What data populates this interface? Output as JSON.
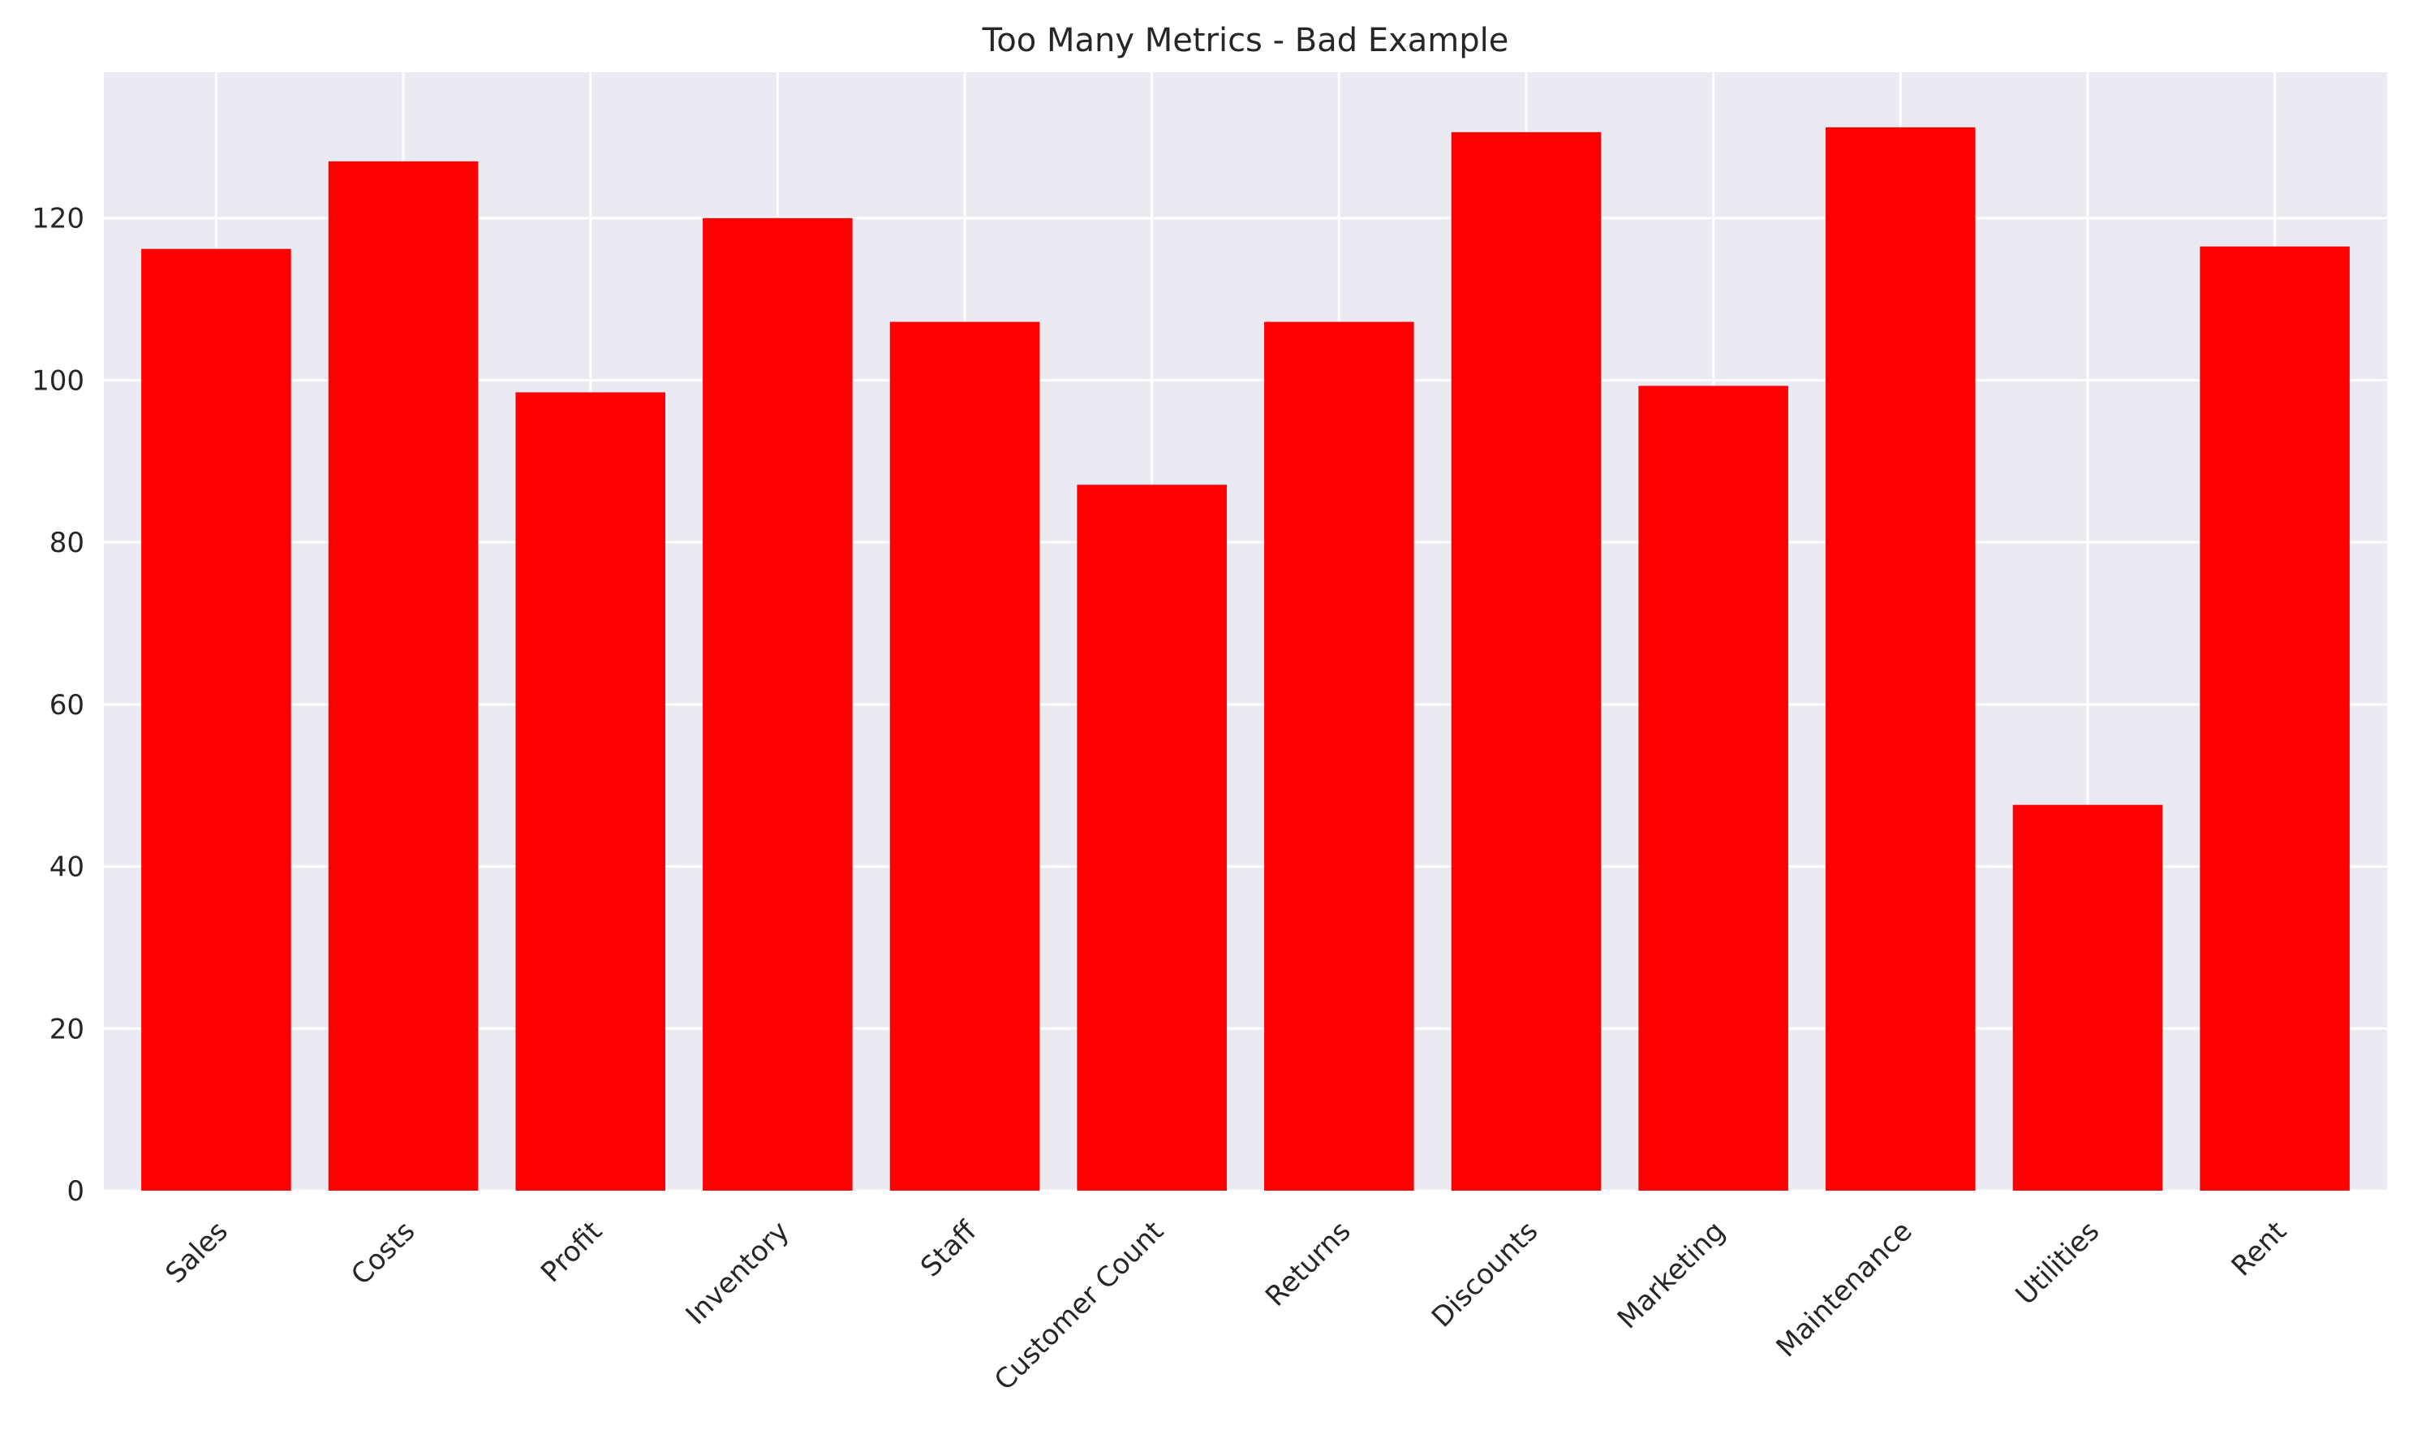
{
  "chart_data": {
    "type": "bar",
    "title": "Too Many Metrics - Bad Example",
    "xlabel": "",
    "ylabel": "",
    "categories": [
      "Sales",
      "Costs",
      "Profit",
      "Inventory",
      "Staff",
      "Customer Count",
      "Returns",
      "Discounts",
      "Marketing",
      "Maintenance",
      "Utilities",
      "Rent"
    ],
    "values": [
      116.2,
      127.0,
      98.5,
      120.0,
      107.2,
      87.1,
      107.2,
      130.6,
      99.3,
      131.2,
      47.6,
      116.5
    ],
    "ylim": [
      0,
      138
    ],
    "yticks": [
      0,
      20,
      40,
      60,
      80,
      100,
      120
    ],
    "grid": true,
    "colors": {
      "bar": "#ff0000",
      "plot_background": "#eaeaf2",
      "grid": "#ffffff",
      "text": "#262626"
    }
  }
}
